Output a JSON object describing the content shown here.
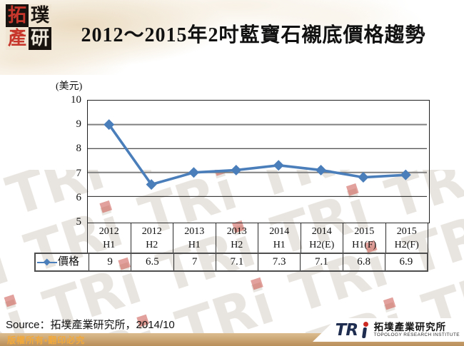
{
  "logo_block": {
    "chars": [
      "拓",
      "璞",
      "產",
      "研"
    ]
  },
  "title": "2012～2015年2吋藍寶石襯底價格趨勢",
  "chart_data": {
    "type": "line",
    "title": "2012～2015年2吋藍寶石襯底價格趨勢",
    "unit_label": "(美元)",
    "categories": [
      [
        "2012",
        "H1"
      ],
      [
        "2012",
        "H2"
      ],
      [
        "2013",
        "H1"
      ],
      [
        "2013",
        "H2"
      ],
      [
        "2014",
        "H1"
      ],
      [
        "2014",
        "H2(E)"
      ],
      [
        "2015",
        "H1(F)"
      ],
      [
        "2015",
        "H2(F)"
      ]
    ],
    "series": [
      {
        "name": "價格",
        "values": [
          9,
          6.5,
          7,
          7.1,
          7.3,
          7.1,
          6.8,
          6.9
        ]
      }
    ],
    "ylim": [
      5,
      10
    ],
    "yticks": [
      10,
      9,
      8,
      7,
      6,
      5
    ],
    "gridlines": [
      9,
      8,
      7,
      6
    ],
    "grid": true,
    "legend_position": "table-left",
    "line_color": "#4a7ebb",
    "marker": "diamond"
  },
  "source_line": "Source：拓墣產業研究所，2014/10",
  "footer": {
    "copyright": "版權所有▪翻印必究",
    "logo_tr": "TR",
    "org_zh": "拓墣產業研究所",
    "org_en": "TOPOLOGY RESEARCH INSTITUTE"
  },
  "watermark_text": "TRi",
  "colors": {
    "accent_blue": "#4a7ebb",
    "bar_tan": "#b98e59",
    "copyright_text": "#f2a93c",
    "logo_red": "#cc2b24",
    "logo_navy": "#1e2d50"
  }
}
